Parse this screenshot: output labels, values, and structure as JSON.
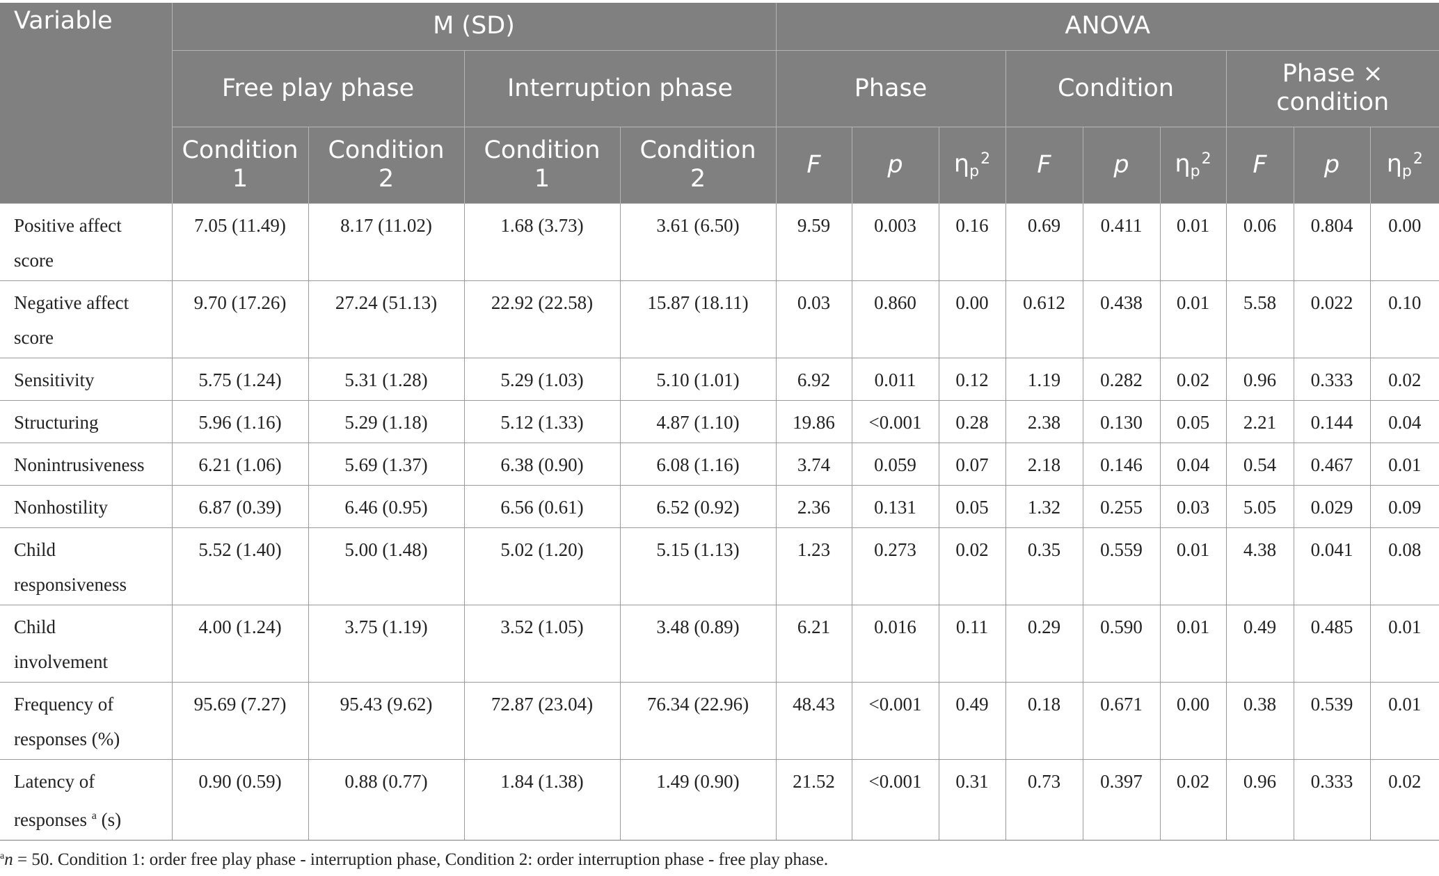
{
  "header": {
    "variable": "Variable",
    "msd": "M (SD)",
    "anova": "ANOVA",
    "free_play_phase": "Free play phase",
    "interruption_phase": "Interruption phase",
    "phase": "Phase",
    "condition": "Condition",
    "interaction_line1": "Phase ×",
    "interaction_line2": "condition",
    "condition1_line1": "Condition",
    "condition1_line2": "1",
    "condition2_line1": "Condition",
    "condition2_line2": "2",
    "f": "F",
    "p": "p",
    "eta": "η",
    "eta_sub": "p",
    "eta_sup": "2"
  },
  "rows": [
    {
      "label": [
        "Positive affect",
        "score"
      ],
      "values": [
        "7.05 (11.49)",
        "8.17 (11.02)",
        "1.68 (3.73)",
        "3.61 (6.50)",
        "9.59",
        "0.003",
        "0.16",
        "0.69",
        "0.411",
        "0.01",
        "0.06",
        "0.804",
        "0.00"
      ]
    },
    {
      "label": [
        "Negative affect",
        "score"
      ],
      "values": [
        "9.70 (17.26)",
        "27.24 (51.13)",
        "22.92 (22.58)",
        "15.87 (18.11)",
        "0.03",
        "0.860",
        "0.00",
        "0.612",
        "0.438",
        "0.01",
        "5.58",
        "0.022",
        "0.10"
      ]
    },
    {
      "label": [
        "Sensitivity"
      ],
      "values": [
        "5.75 (1.24)",
        "5.31 (1.28)",
        "5.29 (1.03)",
        "5.10 (1.01)",
        "6.92",
        "0.011",
        "0.12",
        "1.19",
        "0.282",
        "0.02",
        "0.96",
        "0.333",
        "0.02"
      ]
    },
    {
      "label": [
        "Structuring"
      ],
      "values": [
        "5.96 (1.16)",
        "5.29 (1.18)",
        "5.12 (1.33)",
        "4.87 (1.10)",
        "19.86",
        "<0.001",
        "0.28",
        "2.38",
        "0.130",
        "0.05",
        "2.21",
        "0.144",
        "0.04"
      ]
    },
    {
      "label": [
        "Nonintrusiveness"
      ],
      "values": [
        "6.21 (1.06)",
        "5.69 (1.37)",
        "6.38 (0.90)",
        "6.08 (1.16)",
        "3.74",
        "0.059",
        "0.07",
        "2.18",
        "0.146",
        "0.04",
        "0.54",
        "0.467",
        "0.01"
      ]
    },
    {
      "label": [
        "Nonhostility"
      ],
      "values": [
        "6.87 (0.39)",
        "6.46 (0.95)",
        "6.56 (0.61)",
        "6.52 (0.92)",
        "2.36",
        "0.131",
        "0.05",
        "1.32",
        "0.255",
        "0.03",
        "5.05",
        "0.029",
        "0.09"
      ]
    },
    {
      "label": [
        "Child",
        "responsiveness"
      ],
      "values": [
        "5.52 (1.40)",
        "5.00 (1.48)",
        "5.02 (1.20)",
        "5.15 (1.13)",
        "1.23",
        "0.273",
        "0.02",
        "0.35",
        "0.559",
        "0.01",
        "4.38",
        "0.041",
        "0.08"
      ]
    },
    {
      "label": [
        "Child",
        "involvement"
      ],
      "values": [
        "4.00 (1.24)",
        "3.75 (1.19)",
        "3.52 (1.05)",
        "3.48 (0.89)",
        "6.21",
        "0.016",
        "0.11",
        "0.29",
        "0.590",
        "0.01",
        "0.49",
        "0.485",
        "0.01"
      ]
    },
    {
      "label": [
        "Frequency of",
        "responses (%)"
      ],
      "values": [
        "95.69 (7.27)",
        "95.43 (9.62)",
        "72.87 (23.04)",
        "76.34 (22.96)",
        "48.43",
        "<0.001",
        "0.49",
        "0.18",
        "0.671",
        "0.00",
        "0.38",
        "0.539",
        "0.01"
      ]
    },
    {
      "label": [
        "Latency of",
        "responses"
      ],
      "label_sup": "a",
      "label_unit": "(s)",
      "values": [
        "0.90 (0.59)",
        "0.88 (0.77)",
        "1.84 (1.38)",
        "1.49 (0.90)",
        "21.52",
        "<0.001",
        "0.31",
        "0.73",
        "0.397",
        "0.02",
        "0.96",
        "0.333",
        "0.02"
      ]
    }
  ],
  "note": {
    "sup": "a",
    "n_var": "n",
    "text": " = 50. Condition 1: order free play phase - interruption phase, Condition 2: order interruption phase - free play phase."
  },
  "colors": {
    "header_bg": "#808080",
    "header_text": "#ffffff",
    "body_text": "#222222",
    "rule": "#9a9a9a"
  }
}
